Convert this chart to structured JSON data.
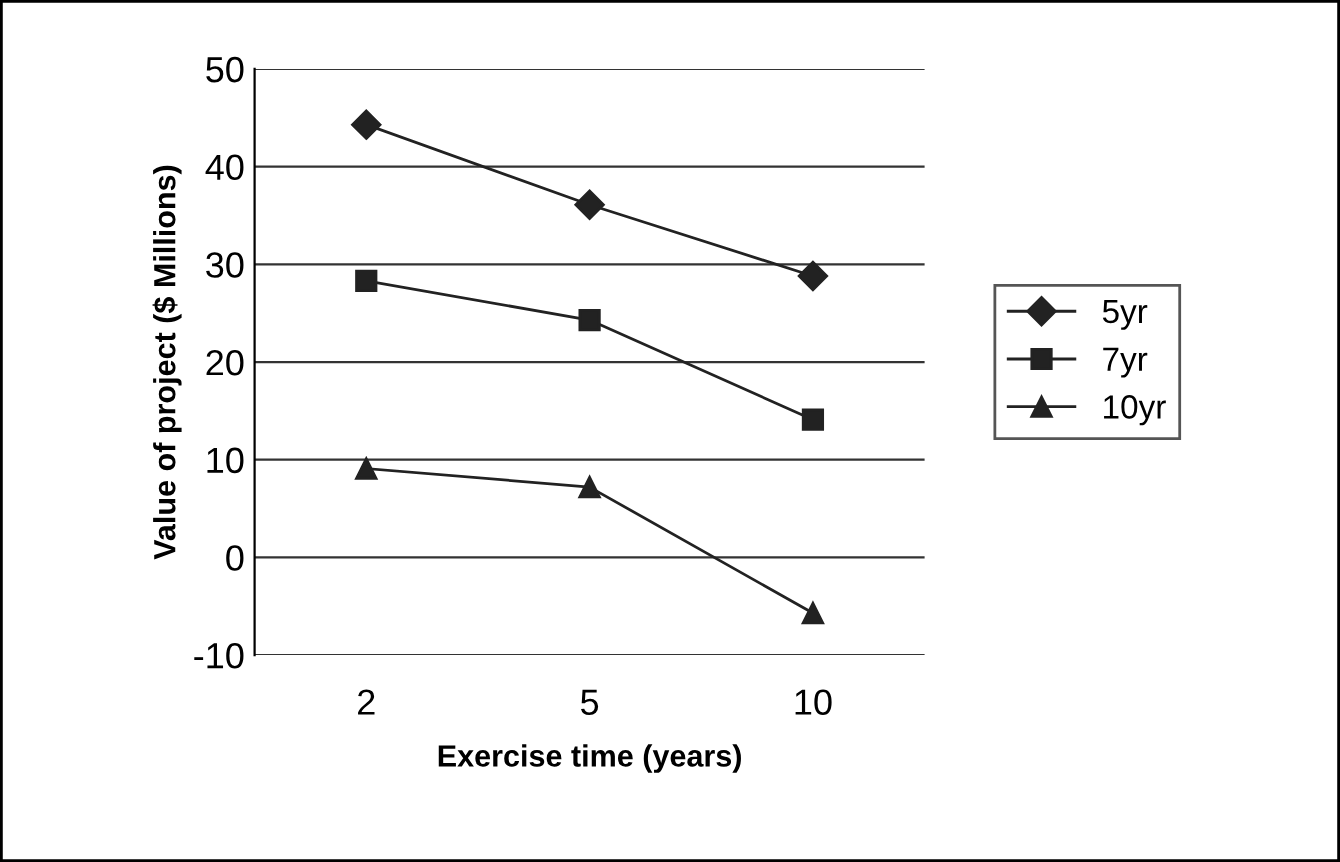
{
  "chart_data": {
    "type": "line",
    "xlabel": "Exercise time (years)",
    "ylabel": "Value of project ($ Millions)",
    "categories": [
      "2",
      "5",
      "10"
    ],
    "series": [
      {
        "name": "5yr",
        "color": "#222222",
        "marker": "diamond",
        "values": [
          44.3,
          36.1,
          28.8
        ]
      },
      {
        "name": "7yr",
        "color": "#222222",
        "marker": "square",
        "values": [
          28.3,
          24.3,
          14.1
        ]
      },
      {
        "name": "10yr",
        "color": "#222222",
        "marker": "triangle",
        "values": [
          9.1,
          7.2,
          -5.7
        ]
      }
    ],
    "ylim": [
      -10,
      50
    ],
    "yticks": [
      -10,
      0,
      10,
      20,
      30,
      40,
      50
    ],
    "grid": "y",
    "legend": "right",
    "line_style": "solid"
  }
}
